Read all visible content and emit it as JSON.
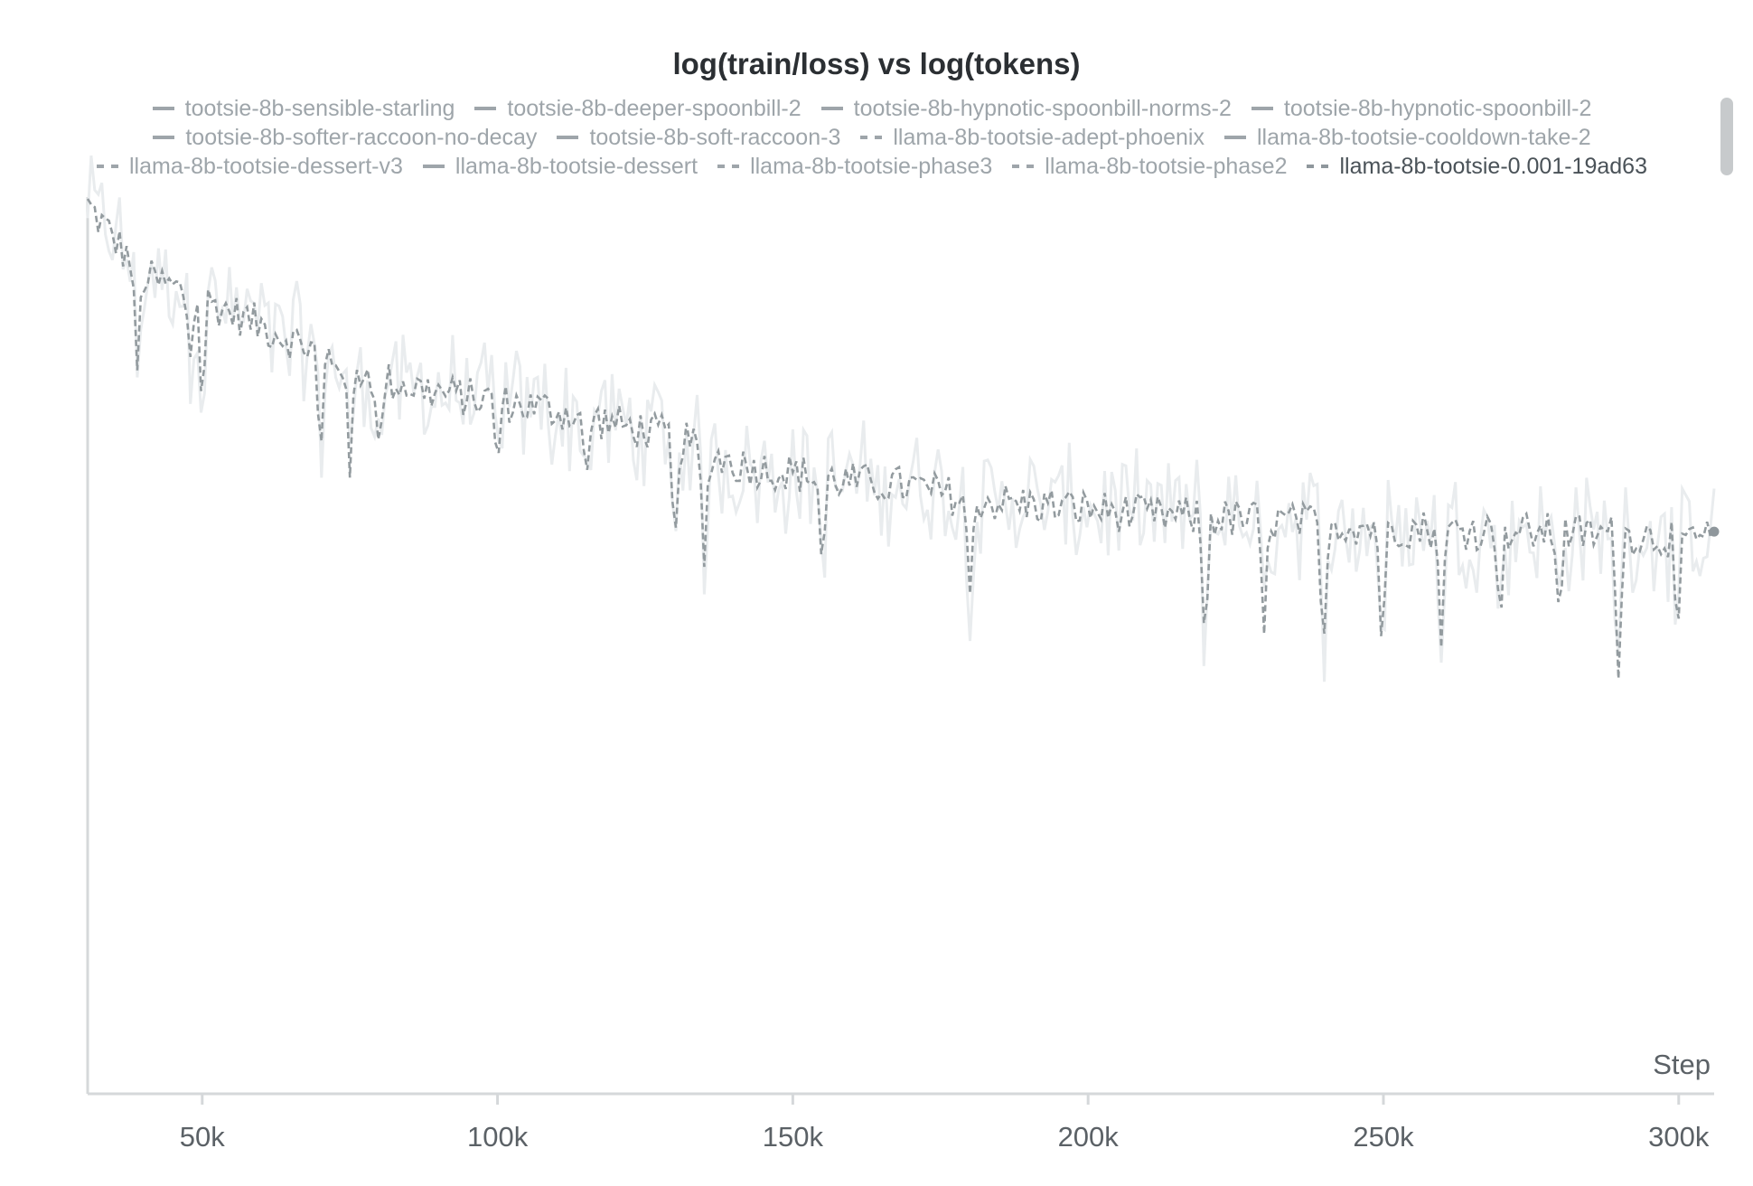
{
  "chart_data": {
    "type": "line",
    "title": "log(train/loss) vs log(tokens)",
    "xlabel": "Step",
    "ylabel": "",
    "xlim": [
      30600,
      306000
    ],
    "ylim": [
      0,
      1
    ],
    "xticks": [
      50000,
      100000,
      150000,
      200000,
      250000,
      300000
    ],
    "xtick_labels": [
      "50k",
      "100k",
      "150k",
      "200k",
      "250k",
      "300k"
    ],
    "y_tick_labels_visible": false,
    "grid": false,
    "legend_position": "top",
    "legend": [
      {
        "name": "tootsie-8b-sensible-starling",
        "style": "solid",
        "row": 0
      },
      {
        "name": "tootsie-8b-deeper-spoonbill-2",
        "style": "solid",
        "row": 0
      },
      {
        "name": "tootsie-8b-hypnotic-spoonbill-norms-2",
        "style": "solid",
        "row": 0
      },
      {
        "name": "tootsie-8b-hypnotic-spoonbill-2",
        "style": "solid",
        "row": 0
      },
      {
        "name": "tootsie-8b-softer-raccoon-no-decay",
        "style": "solid",
        "row": 1
      },
      {
        "name": "tootsie-8b-soft-raccoon-3",
        "style": "solid",
        "row": 1
      },
      {
        "name": "llama-8b-tootsie-adept-phoenix",
        "style": "dashed",
        "row": 1
      },
      {
        "name": "llama-8b-tootsie-cooldown-take-2",
        "style": "solid",
        "row": 1
      },
      {
        "name": "llama-8b-tootsie-dessert-v3",
        "style": "dashed",
        "row": 2
      },
      {
        "name": "llama-8b-tootsie-dessert",
        "style": "solid",
        "row": 2
      },
      {
        "name": "llama-8b-tootsie-phase3",
        "style": "dashed",
        "row": 2
      },
      {
        "name": "llama-8b-tootsie-phase2",
        "style": "dashed",
        "row": 2
      },
      {
        "name": "llama-8b-tootsie-0.001-19ad63",
        "style": "dashed",
        "row": 2,
        "highlighted": true
      }
    ],
    "series": [
      {
        "name": "llama-8b-tootsie-0.001-19ad63",
        "style": "dashed",
        "color": "#939b9f",
        "x": [
          30600,
          40000,
          50000,
          60000,
          70000,
          80000,
          90000,
          100000,
          110000,
          120000,
          130000,
          140000,
          150000,
          160000,
          170000,
          180000,
          190000,
          200000,
          210000,
          220000,
          230000,
          240000,
          250000,
          260000,
          270000,
          280000,
          290000,
          300000,
          306000
        ],
        "y": [
          0.995,
          0.915,
          0.89,
          0.86,
          0.83,
          0.8,
          0.785,
          0.775,
          0.765,
          0.75,
          0.735,
          0.705,
          0.695,
          0.685,
          0.68,
          0.665,
          0.66,
          0.655,
          0.648,
          0.645,
          0.642,
          0.638,
          0.635,
          0.632,
          0.63,
          0.628,
          0.626,
          0.622,
          0.62
        ],
        "dips": [
          {
            "x": 39000,
            "y": 0.81
          },
          {
            "x": 48000,
            "y": 0.825
          },
          {
            "x": 50000,
            "y": 0.76
          },
          {
            "x": 70000,
            "y": 0.7
          },
          {
            "x": 75000,
            "y": 0.69
          },
          {
            "x": 80000,
            "y": 0.71
          },
          {
            "x": 100000,
            "y": 0.7
          },
          {
            "x": 115000,
            "y": 0.68
          },
          {
            "x": 130000,
            "y": 0.6
          },
          {
            "x": 135000,
            "y": 0.59
          },
          {
            "x": 155000,
            "y": 0.58
          },
          {
            "x": 180000,
            "y": 0.56
          },
          {
            "x": 219800,
            "y": 0.49
          },
          {
            "x": 229800,
            "y": 0.515
          },
          {
            "x": 239800,
            "y": 0.475
          },
          {
            "x": 249800,
            "y": 0.48
          },
          {
            "x": 259800,
            "y": 0.5
          },
          {
            "x": 269800,
            "y": 0.525
          },
          {
            "x": 279800,
            "y": 0.53
          },
          {
            "x": 289800,
            "y": 0.465
          },
          {
            "x": 299800,
            "y": 0.5
          }
        ]
      }
    ]
  }
}
